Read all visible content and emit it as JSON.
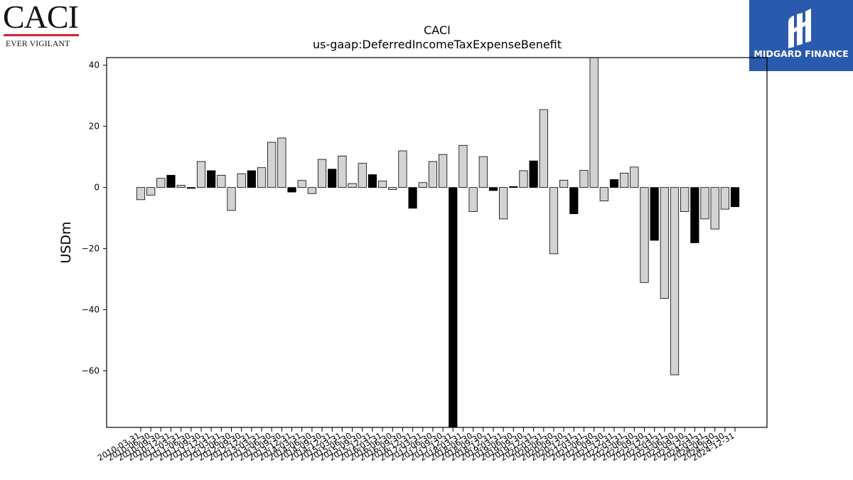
{
  "logo_left": {
    "wordmark": "CACI",
    "tagline": "EVER VIGILANT"
  },
  "logo_right": {
    "name": "MIDGARD FINANCE"
  },
  "colors": {
    "bar_light": "#d3d3d3",
    "bar_dark": "#000000",
    "brand_blue": "#2a5aad",
    "brand_red": "#d8202f"
  },
  "chart_data": {
    "type": "bar",
    "title": "CACI",
    "subtitle": "us-gaap:DeferredIncomeTaxExpenseBenefit",
    "ylabel": "USDm",
    "xlabel": "",
    "ylim": [
      -78.5,
      42.5
    ],
    "yticks": [
      40,
      20,
      0,
      -20,
      -40,
      -60
    ],
    "ytick_labels": [
      "40",
      "20",
      "0",
      "−20",
      "−40",
      "−60"
    ],
    "grid": false,
    "categories": [
      "2010-03-31",
      "2010-06-30",
      "2010-09-30",
      "2010-12-31",
      "2011-03-31",
      "2011-06-30",
      "2011-09-30",
      "2011-12-31",
      "2012-03-31",
      "2012-06-30",
      "2012-09-30",
      "2012-12-31",
      "2013-03-31",
      "2013-06-30",
      "2013-09-30",
      "2013-12-31",
      "2014-03-31",
      "2014-06-30",
      "2014-09-30",
      "2014-12-31",
      "2015-03-31",
      "2015-06-30",
      "2015-09-30",
      "2015-12-31",
      "2016-03-31",
      "2016-06-30",
      "2016-09-30",
      "2016-12-31",
      "2017-03-31",
      "2017-06-30",
      "2017-09-30",
      "2017-12-31",
      "2018-03-31",
      "2018-06-30",
      "2018-09-30",
      "2018-12-31",
      "2019-03-31",
      "2019-06-30",
      "2019-09-30",
      "2019-12-31",
      "2020-03-31",
      "2020-06-30",
      "2020-09-30",
      "2020-12-31",
      "2021-03-31",
      "2021-06-30",
      "2021-09-30",
      "2021-12-31",
      "2022-03-31",
      "2022-06-30",
      "2022-09-30",
      "2022-12-31",
      "2023-03-31",
      "2023-06-30",
      "2023-09-30",
      "2023-12-31",
      "2024-03-31",
      "2024-06-30",
      "2024-09-30",
      "2024-12-31"
    ],
    "values": [
      -4.0,
      -2.5,
      3.0,
      4.0,
      0.7,
      -0.3,
      8.5,
      5.5,
      4.0,
      -7.5,
      4.5,
      5.5,
      6.5,
      14.8,
      16.2,
      -1.5,
      2.3,
      -2.0,
      9.2,
      6.0,
      10.3,
      1.3,
      7.9,
      4.2,
      2.1,
      -0.7,
      12.0,
      -6.8,
      1.6,
      8.5,
      10.8,
      -80.0,
      13.8,
      -7.9,
      10.1,
      -1.0,
      -10.3,
      0.3,
      5.5,
      8.7,
      25.5,
      -21.7,
      2.4,
      -8.6,
      5.6,
      45.0,
      -4.4,
      2.6,
      4.7,
      6.7,
      -31.1,
      -17.3,
      -36.3,
      -61.3,
      -7.9,
      -18.1,
      -10.3,
      -13.6,
      -7.1,
      -6.3
    ],
    "bar_colors": [
      "light",
      "light",
      "light",
      "dark",
      "light",
      "dark",
      "light",
      "dark",
      "light",
      "light",
      "light",
      "dark",
      "light",
      "light",
      "light",
      "dark",
      "light",
      "light",
      "light",
      "dark",
      "light",
      "light",
      "light",
      "dark",
      "light",
      "light",
      "light",
      "dark",
      "light",
      "light",
      "light",
      "dark",
      "light",
      "light",
      "light",
      "dark",
      "light",
      "dark",
      "light",
      "dark",
      "light",
      "light",
      "light",
      "dark",
      "light",
      "light",
      "light",
      "dark",
      "light",
      "light",
      "light",
      "dark",
      "light",
      "light",
      "light",
      "dark",
      "light",
      "light",
      "light",
      "dark"
    ]
  }
}
